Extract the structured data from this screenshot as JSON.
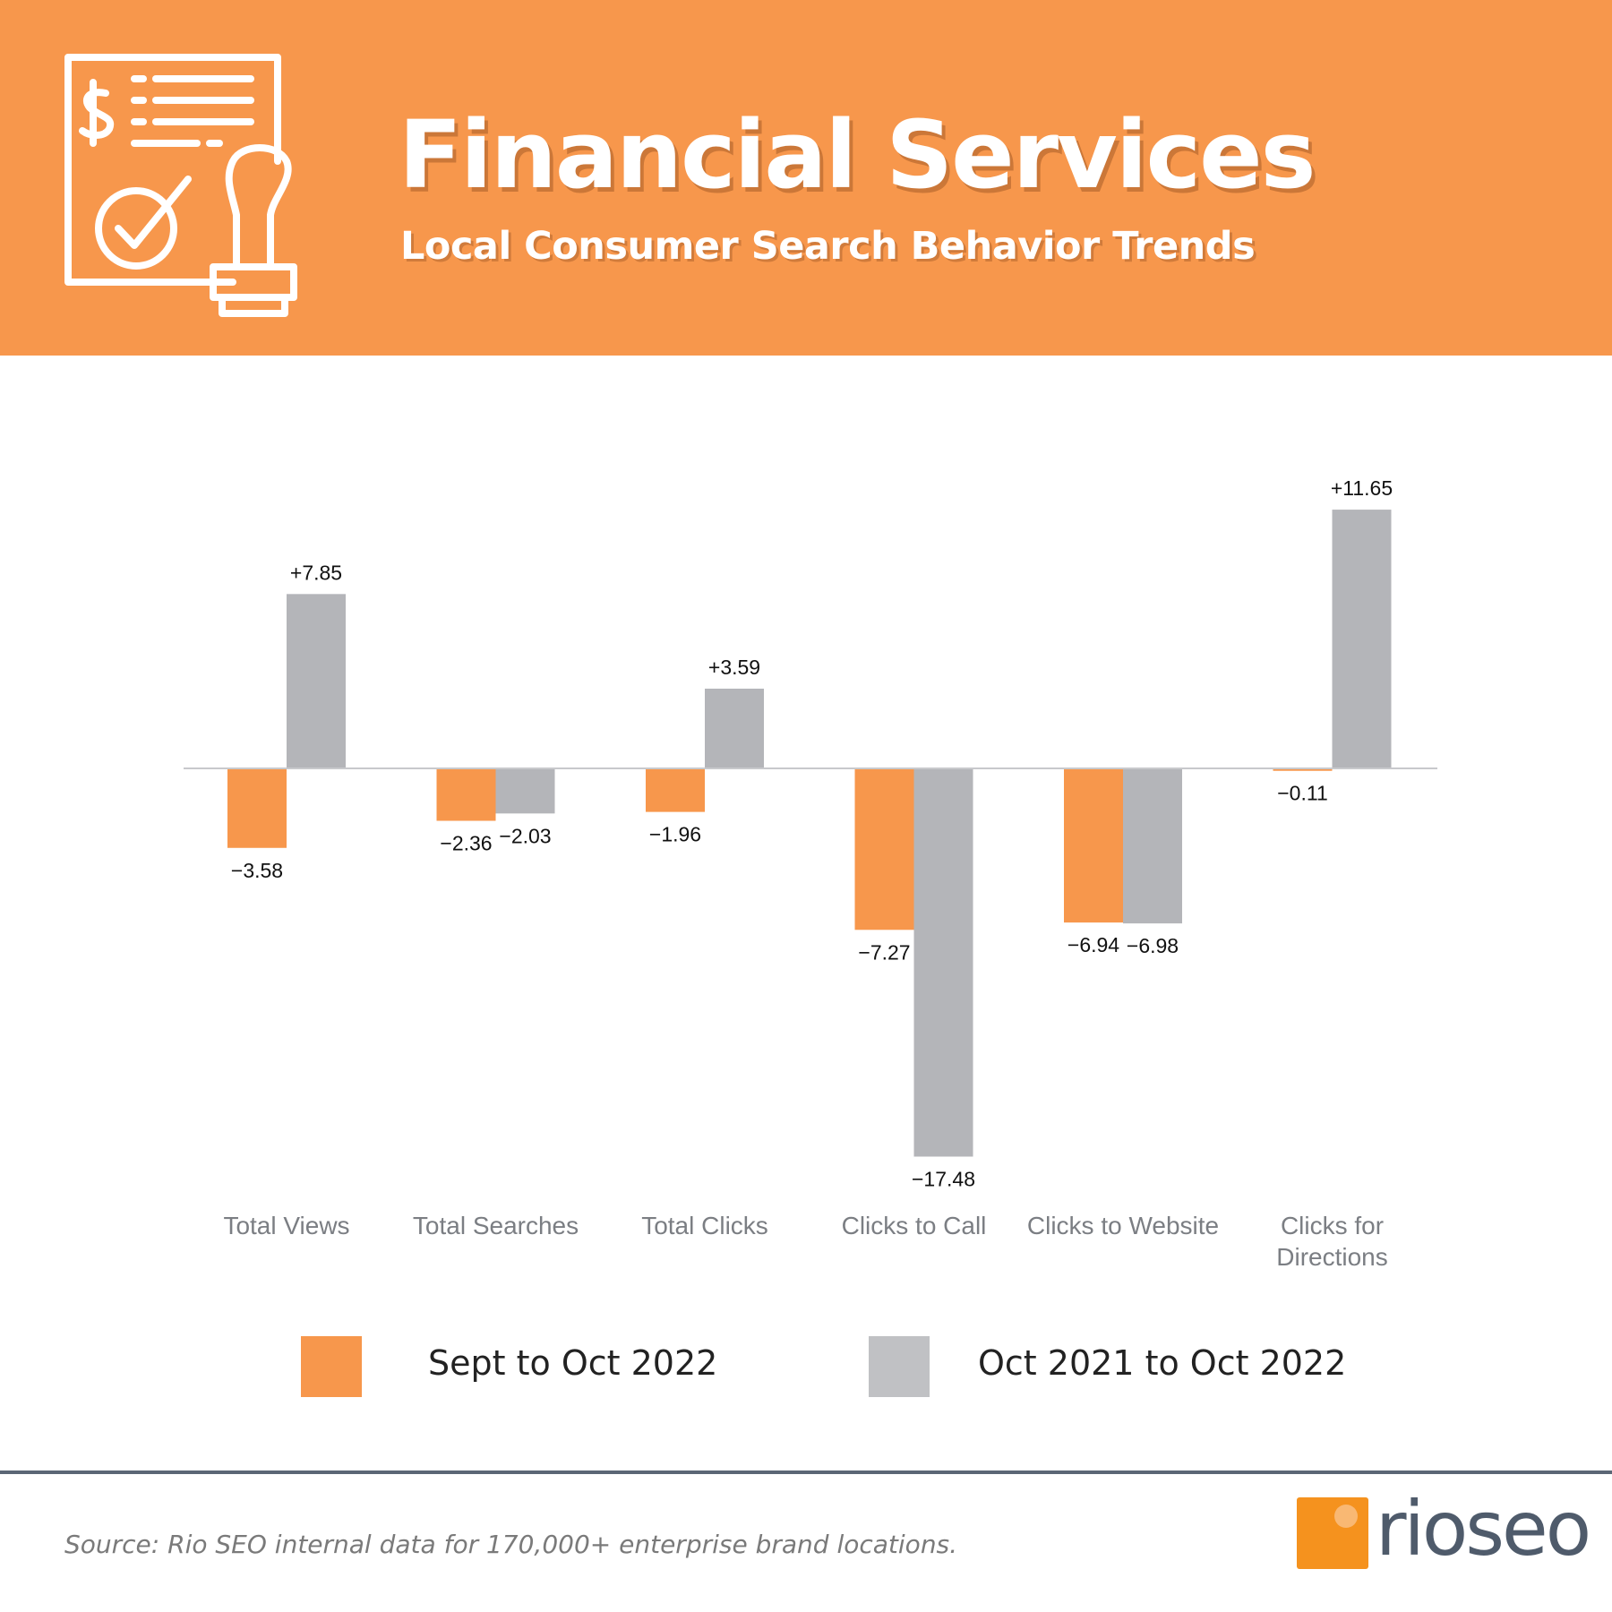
{
  "header": {
    "title": "Financial Services",
    "subtitle": "Local Consumer Search Behavior Trends",
    "icon": "financial-document-stamp-icon",
    "background_color": "#f7974c"
  },
  "chart_data": {
    "type": "bar",
    "title": "Financial Services",
    "subtitle": "Local Consumer Search Behavior Trends",
    "xlabel": "",
    "ylabel": "",
    "grid": false,
    "ylim": [
      -17.48,
      11.65
    ],
    "categories": [
      [
        "Total Views"
      ],
      [
        "Total Searches"
      ],
      [
        "Total Clicks"
      ],
      [
        "Clicks to Call"
      ],
      [
        "Clicks to Website"
      ],
      [
        "Clicks for",
        "Directions"
      ]
    ],
    "series": [
      {
        "name": "Sept to Oct 2022",
        "color": "#f7974c",
        "values": [
          -3.58,
          -2.36,
          -1.96,
          -7.27,
          -6.94,
          -0.11
        ],
        "labels": [
          "−3.58",
          "−2.36",
          "−1.96",
          "−7.27",
          "−6.94",
          "−0.11"
        ]
      },
      {
        "name": "Oct 2021 to Oct 2022",
        "color": "#b4b5b9",
        "values": [
          7.85,
          -2.03,
          3.59,
          -17.48,
          -6.98,
          11.65
        ],
        "labels": [
          "+7.85",
          "−2.03",
          "+3.59",
          "−17.48",
          "−6.98",
          "+11.65"
        ]
      }
    ],
    "legend_position": "bottom"
  },
  "legend": {
    "items": [
      {
        "label": "Sept to Oct 2022",
        "color": "#f7974c"
      },
      {
        "label": "Oct 2021 to Oct 2022",
        "color": "#c0c1c4"
      }
    ]
  },
  "footer": {
    "source": "Source: Rio SEO internal data for 170,000+ enterprise brand locations.",
    "logo_text": "rioseo",
    "logo_color": "#f5921e"
  }
}
